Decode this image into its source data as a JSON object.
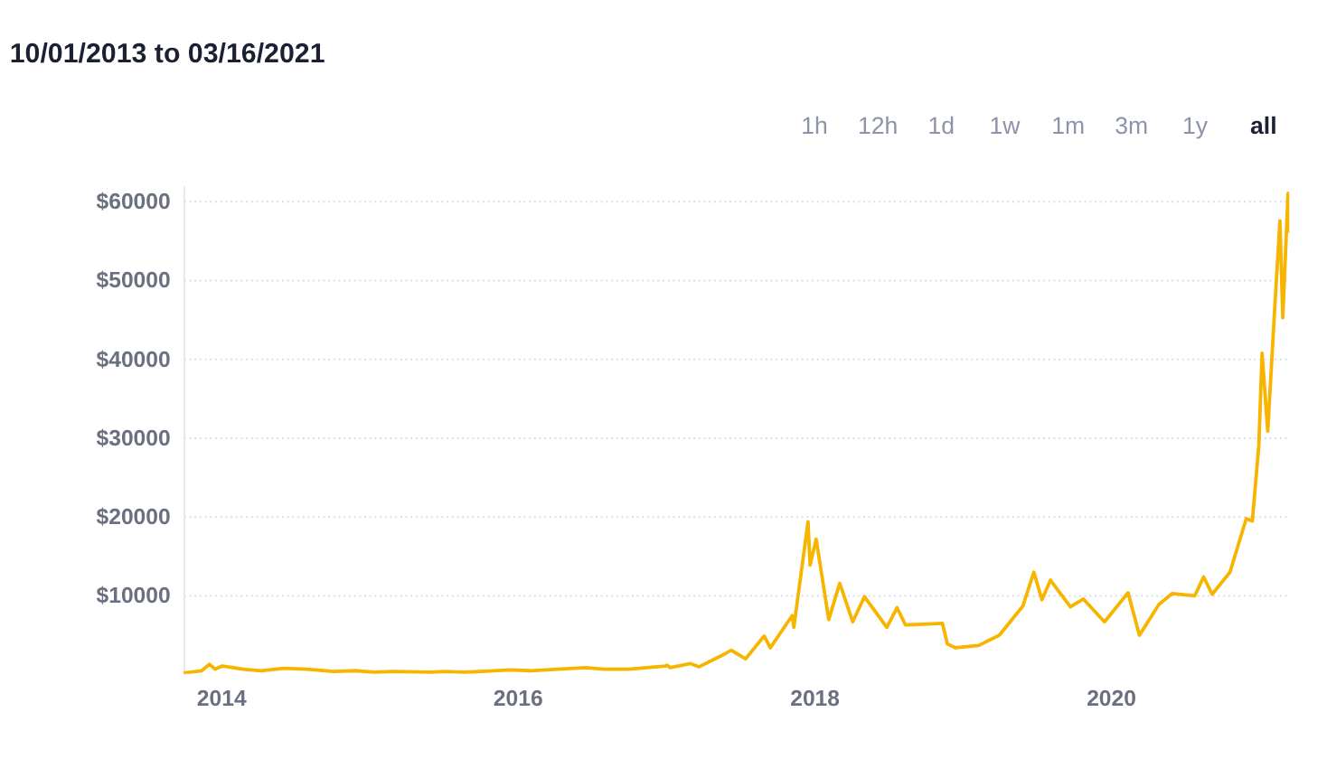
{
  "chart_data": {
    "type": "line",
    "title": "10/01/2013 to 03/16/2021",
    "annotations": [
      "1h",
      "12h",
      "1d",
      "1w",
      "1m",
      "3m",
      "1y",
      "all"
    ],
    "x": [
      "2013-10-01",
      "2013-11-15",
      "2013-12-04",
      "2013-12-18",
      "2014-01-05",
      "2014-02-25",
      "2014-04-10",
      "2014-06-05",
      "2014-08-01",
      "2014-10-05",
      "2014-12-01",
      "2015-01-14",
      "2015-03-01",
      "2015-06-01",
      "2015-07-10",
      "2015-08-25",
      "2015-11-04",
      "2015-12-15",
      "2016-02-01",
      "2016-06-17",
      "2016-08-02",
      "2016-10-01",
      "2016-12-31",
      "2017-01-04",
      "2017-01-11",
      "2017-03-03",
      "2017-03-24",
      "2017-05-25",
      "2017-06-11",
      "2017-07-16",
      "2017-08-31",
      "2017-09-15",
      "2017-11-08",
      "2017-11-12",
      "2017-12-17",
      "2017-12-22",
      "2018-01-06",
      "2018-02-06",
      "2018-03-05",
      "2018-04-06",
      "2018-05-05",
      "2018-06-29",
      "2018-07-24",
      "2018-08-14",
      "2018-11-13",
      "2018-11-25",
      "2018-12-15",
      "2019-02-10",
      "2019-04-02",
      "2019-05-30",
      "2019-06-26",
      "2019-07-16",
      "2019-08-06",
      "2019-09-24",
      "2019-10-26",
      "2019-12-17",
      "2020-02-13",
      "2020-03-12",
      "2020-04-29",
      "2020-06-01",
      "2020-07-26",
      "2020-08-17",
      "2020-09-07",
      "2020-10-21",
      "2020-11-30",
      "2020-12-15",
      "2020-12-31",
      "2021-01-08",
      "2021-01-22",
      "2021-02-08",
      "2021-02-21",
      "2021-02-28",
      "2021-03-13",
      "2021-03-16"
    ],
    "series": [
      {
        "color": "#f7b500",
        "values": [
          100,
          400,
          1200,
          600,
          1000,
          600,
          400,
          700,
          600,
          300,
          400,
          200,
          300,
          200,
          300,
          200,
          400,
          500,
          400,
          800,
          600,
          600,
          1000,
          1100,
          800,
          1300,
          900,
          2500,
          3000,
          1900,
          4800,
          3300,
          7400,
          5900,
          19300,
          13800,
          17100,
          6900,
          11500,
          6600,
          9800,
          5900,
          8400,
          6200,
          6400,
          3800,
          3300,
          3600,
          4900,
          8600,
          12900,
          9400,
          11900,
          8500,
          9500,
          6600,
          10300,
          4900,
          8800,
          10200,
          9900,
          12300,
          10100,
          12900,
          19700,
          19400,
          29000,
          40700,
          30800,
          46300,
          57500,
          45200,
          61000,
          56000
        ]
      }
    ],
    "xlim": [
      "2013-10-01",
      "2021-03-16"
    ],
    "xticks": [
      "2014",
      "2016",
      "2018",
      "2020"
    ],
    "ylim": [
      0,
      62000
    ],
    "yticks": [
      {
        "value": 10000,
        "label": "$10000"
      },
      {
        "value": 20000,
        "label": "$20000"
      },
      {
        "value": 30000,
        "label": "$30000"
      },
      {
        "value": 40000,
        "label": "$40000"
      },
      {
        "value": 50000,
        "label": "$50000"
      },
      {
        "value": 60000,
        "label": "$60000"
      }
    ],
    "grid": "y",
    "line_style": "solid",
    "marker": "none",
    "legend": false
  }
}
